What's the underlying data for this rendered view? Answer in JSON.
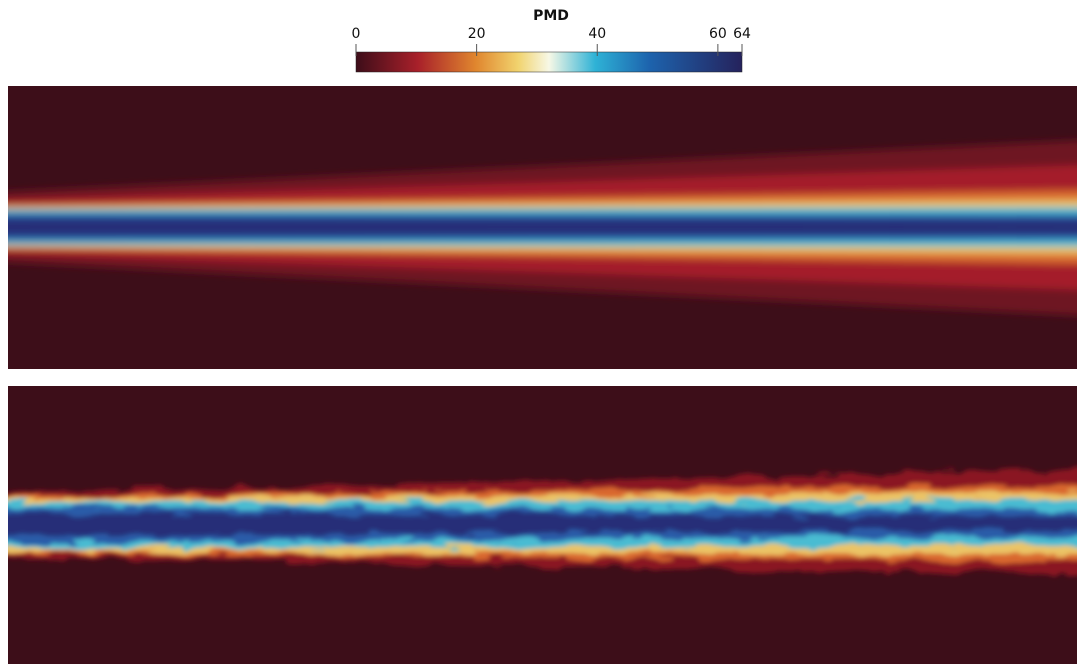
{
  "colorbar": {
    "title": "PMD",
    "range": [
      0,
      64
    ],
    "ticks": [
      0,
      20,
      40,
      60,
      64
    ]
  }
}
